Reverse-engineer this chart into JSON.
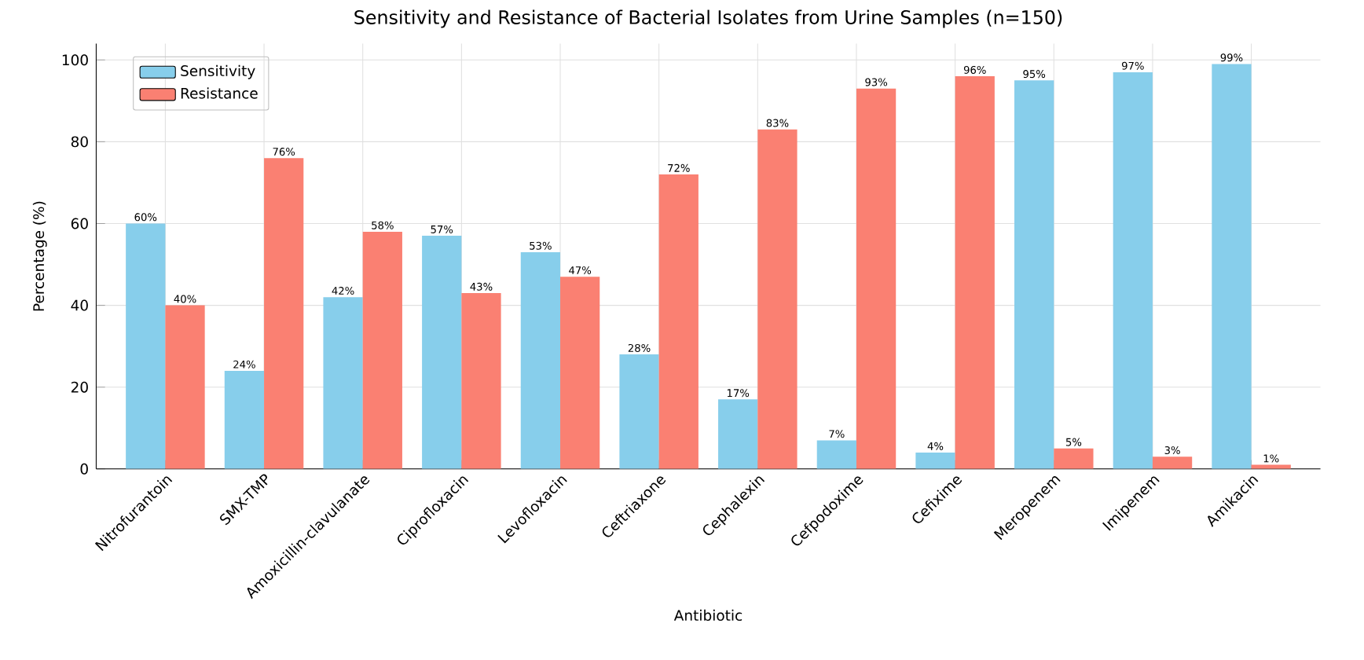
{
  "chart_data": {
    "type": "bar",
    "title": "Sensitivity and Resistance of Bacterial Isolates from Urine Samples (n=150)",
    "xlabel": "Antibiotic",
    "ylabel": "Percentage (%)",
    "categories": [
      "Nitrofurantoin",
      "SMX-TMP",
      "Amoxicillin-clavulanate",
      "Ciprofloxacin",
      "Levofloxacin",
      "Ceftriaxone",
      "Cephalexin",
      "Cefpodoxime",
      "Cefixime",
      "Meropenem",
      "Imipenem",
      "Amikacin"
    ],
    "series": [
      {
        "name": "Sensitivity",
        "color": "#87ceeb",
        "values": [
          60,
          24,
          42,
          57,
          53,
          28,
          17,
          7,
          4,
          95,
          97,
          99
        ],
        "value_labels": [
          "60%",
          "24%",
          "42%",
          "57%",
          "53%",
          "28%",
          "17%",
          "7%",
          "4%",
          "95%",
          "97%",
          "99%"
        ]
      },
      {
        "name": "Resistance",
        "color": "#fa8072",
        "values": [
          40,
          76,
          58,
          43,
          47,
          72,
          83,
          93,
          96,
          5,
          3,
          1
        ],
        "value_labels": [
          "40%",
          "76%",
          "58%",
          "43%",
          "47%",
          "72%",
          "83%",
          "93%",
          "96%",
          "5%",
          "3%",
          "1%"
        ]
      }
    ],
    "ylim": [
      0,
      104
    ],
    "yticks": [
      0,
      20,
      40,
      60,
      80,
      100
    ],
    "grid": true,
    "legend": "top left"
  }
}
